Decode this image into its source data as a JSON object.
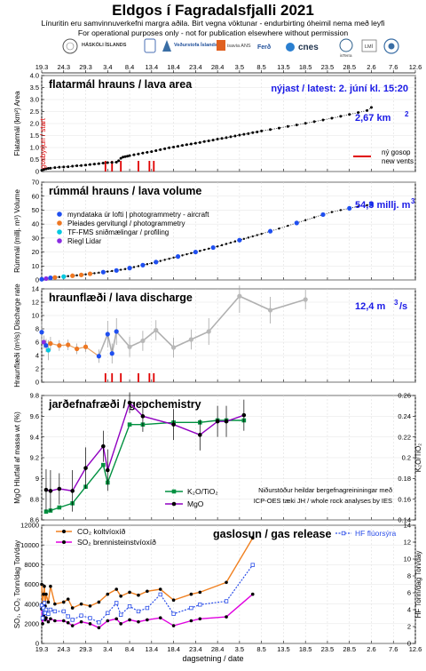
{
  "header": {
    "title": "Eldgos í Fagradalsfjalli 2021",
    "line1": "Línuritin eru samvinnuverkefni margra aðila.  Birt vegna vöktunar - endurbirting óheimil nema með leyfi",
    "line2": "For operational purposes only - not for publication elsewhere without permission",
    "logos": [
      "HÁSKÓLI ÍSLANDS",
      "Veðurstofa Íslands",
      "isavia ANS",
      "cnes",
      "isTerra",
      "LMÍ",
      "Ferð",
      "Almannavarnir"
    ]
  },
  "dates": [
    "19.3",
    "24.3",
    "29.3",
    "3.4",
    "8.4",
    "13.4",
    "18.4",
    "23.4",
    "28.4",
    "3.5",
    "8.5",
    "13.5",
    "18.5",
    "23.5",
    "28.5",
    "2.6",
    "7.6",
    "12.6"
  ],
  "xlabel": "dagsetning / date",
  "colors": {
    "vents": "#e00000",
    "aircraft": "#1f4ff0",
    "pleiades": "#ee7722",
    "tffms": "#00c8e0",
    "riegl": "#8a2be2",
    "co2": "#f08020",
    "so2": "#e000e0",
    "hf": "#2b4ee8",
    "k2o": "#009040",
    "mgo": "#9000c0",
    "annotation": "#1a1ae6"
  },
  "chart_data": [
    {
      "type": "scatter",
      "title": "flatarmál hrauns / lava area",
      "ylabel": "Flatarmál (km²) Area",
      "ylim": [
        0,
        4
      ],
      "yticks": [
        "0",
        "0.5",
        "1.0",
        "1.5",
        "2.0",
        "2.5",
        "3.0",
        "3.5",
        "4.0"
      ],
      "annotation_latest": "nýjast / latest: 2. júní kl. 15:20",
      "annotation_value": "2,67 km",
      "annotation_unit_sup": "2",
      "vertical_note": "gosbyrjun / start",
      "legend_vents": [
        "ný gosop",
        "new vents"
      ],
      "x": [
        0,
        0.5,
        1,
        1.5,
        2,
        3,
        4,
        5,
        6,
        7,
        8,
        9,
        10,
        11,
        12,
        13,
        14,
        15,
        16,
        17,
        17.5,
        18,
        18.5,
        19,
        19.5,
        20,
        21,
        22,
        23,
        24,
        25,
        26,
        27,
        28,
        29,
        30,
        31,
        32,
        33,
        34,
        35,
        36,
        37,
        38,
        39,
        40,
        41,
        42,
        43,
        44,
        45,
        46,
        47,
        48,
        49,
        50,
        52,
        54,
        56,
        58,
        60,
        62,
        64,
        66,
        68,
        70,
        72,
        74,
        75
      ],
      "values": [
        0.05,
        0.09,
        0.11,
        0.13,
        0.14,
        0.16,
        0.18,
        0.19,
        0.2,
        0.22,
        0.24,
        0.25,
        0.27,
        0.29,
        0.31,
        0.33,
        0.35,
        0.37,
        0.38,
        0.39,
        0.45,
        0.55,
        0.6,
        0.62,
        0.64,
        0.66,
        0.7,
        0.73,
        0.77,
        0.8,
        0.83,
        0.87,
        0.91,
        0.95,
        0.99,
        1.02,
        1.05,
        1.09,
        1.12,
        1.15,
        1.18,
        1.21,
        1.25,
        1.28,
        1.31,
        1.35,
        1.38,
        1.41,
        1.45,
        1.48,
        1.52,
        1.55,
        1.58,
        1.62,
        1.65,
        1.69,
        1.75,
        1.81,
        1.88,
        1.94,
        2.01,
        2.08,
        2.15,
        2.22,
        2.3,
        2.38,
        2.46,
        2.54,
        2.67
      ],
      "vents_x": [
        14.5,
        16,
        18,
        22,
        24.5,
        25.5
      ]
    },
    {
      "type": "scatter",
      "title": "rúmmál hrauns / lava volume",
      "ylabel": "Rúmmál (millj. m³) Volume",
      "ylim": [
        0,
        70
      ],
      "yticks": [
        "0",
        "10",
        "20",
        "30",
        "40",
        "50",
        "60",
        "70"
      ],
      "annotation_value": "54,3 millj. m",
      "annotation_unit_sup": "3",
      "legend": [
        "myndataka úr lofti  |  photogrammetry - aircraft",
        "Pleiades gervitungl  /  photogrammetry",
        "TF-FMS sniðmælingar  /  profiling",
        "Riegl Lidar"
      ],
      "x": [
        0,
        1,
        2,
        3,
        4,
        5,
        6,
        7,
        8,
        9,
        10,
        11,
        12,
        13,
        14,
        15,
        16,
        17,
        18,
        19,
        20,
        21,
        22,
        23,
        24,
        25,
        26,
        27,
        28,
        29,
        30,
        31,
        32,
        33,
        34,
        35,
        36,
        37,
        38,
        39,
        40,
        41,
        42,
        43,
        44,
        45,
        46,
        47,
        48,
        49,
        50,
        52,
        54,
        56,
        58,
        60,
        62,
        64,
        66,
        68,
        70,
        72,
        74,
        75
      ],
      "values": [
        0.5,
        1,
        1.5,
        1.8,
        2.1,
        2.4,
        2.7,
        3,
        3.3,
        3.6,
        4,
        4.4,
        4.8,
        5.2,
        5.6,
        6,
        6.4,
        6.8,
        7.3,
        7.8,
        8.5,
        9.2,
        9.9,
        10.6,
        11.3,
        12,
        12.8,
        13.6,
        14.4,
        15.2,
        16,
        16.8,
        17.6,
        18.4,
        19.2,
        20,
        20.8,
        21.6,
        22.4,
        23.2,
        24,
        24.9,
        25.8,
        26.7,
        27.6,
        28.5,
        29.4,
        30.3,
        31.2,
        32.1,
        33,
        34.9,
        36.8,
        38.8,
        40.8,
        42.8,
        44.8,
        46.8,
        48.6,
        50,
        51.3,
        52.6,
        53.5,
        54.3
      ],
      "markers": [
        {
          "x": 0,
          "y": 0.5,
          "kind": "aircraft"
        },
        {
          "x": 1,
          "y": 1,
          "kind": "riegl"
        },
        {
          "x": 2,
          "y": 1.5,
          "kind": "aircraft"
        },
        {
          "x": 3,
          "y": 1.8,
          "kind": "pleiades"
        },
        {
          "x": 5,
          "y": 2.4,
          "kind": "tffms"
        },
        {
          "x": 7,
          "y": 3,
          "kind": "pleiades"
        },
        {
          "x": 9,
          "y": 3.6,
          "kind": "pleiades"
        },
        {
          "x": 11,
          "y": 4.4,
          "kind": "pleiades"
        },
        {
          "x": 14,
          "y": 5.6,
          "kind": "aircraft"
        },
        {
          "x": 17,
          "y": 6.8,
          "kind": "aircraft"
        },
        {
          "x": 20,
          "y": 8.5,
          "kind": "aircraft"
        },
        {
          "x": 23,
          "y": 10.6,
          "kind": "aircraft"
        },
        {
          "x": 26,
          "y": 12.8,
          "kind": "aircraft"
        },
        {
          "x": 31,
          "y": 16.8,
          "kind": "aircraft"
        },
        {
          "x": 35,
          "y": 20,
          "kind": "aircraft"
        },
        {
          "x": 39,
          "y": 23.2,
          "kind": "aircraft"
        },
        {
          "x": 45,
          "y": 28.5,
          "kind": "aircraft"
        },
        {
          "x": 52,
          "y": 34.9,
          "kind": "aircraft"
        },
        {
          "x": 58,
          "y": 40.8,
          "kind": "aircraft"
        },
        {
          "x": 64,
          "y": 46.8,
          "kind": "aircraft"
        },
        {
          "x": 70,
          "y": 51.3,
          "kind": "aircraft"
        },
        {
          "x": 75,
          "y": 54.3,
          "kind": "aircraft"
        }
      ]
    },
    {
      "type": "line",
      "title": "hraunflæði / lava discharge",
      "ylabel": "Hraunflæði (m³/s) Discharge rate",
      "ylim": [
        0,
        14
      ],
      "yticks": [
        "0",
        "2",
        "4",
        "6",
        "8",
        "10",
        "12",
        "14"
      ],
      "annotation_value": "12,4 m",
      "annotation_unit_sup": "3",
      "annotation_suffix": "/s",
      "vents_x": [
        14.5,
        16,
        18,
        22,
        24.5,
        25.5
      ],
      "points": [
        {
          "x": 0,
          "y": 7.5,
          "err": 1.5,
          "kind": "aircraft"
        },
        {
          "x": 0.5,
          "y": 6,
          "err": 1,
          "kind": "riegl"
        },
        {
          "x": 1,
          "y": 5.5,
          "err": 1,
          "kind": "aircraft"
        },
        {
          "x": 1.5,
          "y": 4.8,
          "err": 1.5,
          "kind": "tffms"
        },
        {
          "x": 2,
          "y": 5.8,
          "err": 1,
          "kind": "pleiades"
        },
        {
          "x": 4,
          "y": 5.5,
          "err": 0.8,
          "kind": "pleiades"
        },
        {
          "x": 6,
          "y": 5.6,
          "err": 0.8,
          "kind": "pleiades"
        },
        {
          "x": 8,
          "y": 5,
          "err": 0.8,
          "kind": "pleiades"
        },
        {
          "x": 10,
          "y": 5.3,
          "err": 0.8,
          "kind": "pleiades"
        },
        {
          "x": 13,
          "y": 3.9,
          "err": 1,
          "kind": "aircraft"
        },
        {
          "x": 15,
          "y": 7.2,
          "err": 2,
          "kind": "aircraft"
        },
        {
          "x": 16,
          "y": 4.3,
          "err": 1.5,
          "kind": "aircraft"
        },
        {
          "x": 17,
          "y": 7.6,
          "err": 2,
          "kind": "aircraft"
        },
        {
          "x": 20,
          "y": 5.3,
          "err": 1.5,
          "kind": "aircraft"
        },
        {
          "x": 23,
          "y": 6.2,
          "err": 1.5,
          "kind": "aircraft"
        },
        {
          "x": 26,
          "y": 7.8,
          "err": 1.5,
          "kind": "aircraft"
        },
        {
          "x": 30,
          "y": 5.2,
          "err": 1.5,
          "kind": "aircraft"
        },
        {
          "x": 34,
          "y": 6.4,
          "err": 1.5,
          "kind": "aircraft"
        },
        {
          "x": 38,
          "y": 7.6,
          "err": 2,
          "kind": "aircraft"
        },
        {
          "x": 45,
          "y": 12.9,
          "err": 2.5,
          "kind": "aircraft"
        },
        {
          "x": 52,
          "y": 10.8,
          "err": 2,
          "kind": "aircraft"
        },
        {
          "x": 60,
          "y": 12.4,
          "err": 1.5,
          "kind": "aircraft"
        }
      ]
    },
    {
      "type": "line",
      "title": "jarðefnafræði / geochemistry",
      "ylabel": "MgO Hlutfall af massa wt (%)",
      "ylabel_right": "K₂O/TiO₂",
      "ylim": [
        8.6,
        9.8
      ],
      "yticks": [
        "8.6",
        "8.8",
        "9",
        "9.2",
        "9.4",
        "9.6",
        "9.8"
      ],
      "ylim_right": [
        0.14,
        0.26
      ],
      "yticks_right": [
        "0.14",
        "0.16",
        "0.18",
        "0.2",
        "0.22",
        "0.24",
        "0.26"
      ],
      "note": [
        "Niðurstöður heildar bergefnagreininingar með",
        "ICP-OES tæki JH / whole rock analyses by IES"
      ],
      "series": [
        {
          "name": "K₂O/TiO₂",
          "axis": "right",
          "x": [
            1,
            2,
            4,
            7,
            10,
            14,
            15,
            20,
            23,
            30,
            36,
            40,
            42,
            46
          ],
          "values": [
            0.148,
            0.149,
            0.152,
            0.156,
            0.172,
            0.193,
            0.176,
            0.232,
            0.232,
            0.234,
            0.234,
            0.236,
            0.236,
            0.236
          ]
        },
        {
          "name": "MgO",
          "axis": "left",
          "x": [
            1,
            2,
            4,
            7,
            10,
            14,
            15,
            20,
            23,
            30,
            36,
            40,
            42,
            46
          ],
          "values": [
            8.89,
            8.88,
            8.9,
            8.88,
            9.1,
            9.31,
            9.08,
            9.73,
            9.6,
            9.52,
            9.42,
            9.55,
            9.55,
            9.61
          ],
          "err": [
            0.2,
            0.2,
            0.15,
            0.2,
            0.2,
            0.15,
            0.2,
            0.1,
            0.15,
            0.15,
            0.15,
            0.15,
            0.15,
            0.15
          ]
        }
      ]
    },
    {
      "type": "line",
      "title": "gaslosun / gas release",
      "ylabel": "SO₂, CO₂ Tonn/dag Ton/day",
      "ylabel_right": "HF Tonn/dag Ton/day",
      "ylim": [
        0,
        12000
      ],
      "yticks": [
        "0",
        "2000",
        "4000",
        "6000",
        "8000",
        "10000",
        "12000"
      ],
      "ylim_right": [
        0,
        14
      ],
      "yticks_right": [
        "0",
        "2",
        "4",
        "6",
        "8",
        "10",
        "12",
        "14"
      ],
      "series": [
        {
          "name": "CO₂ koltvíoxíð",
          "axis": "left",
          "x": [
            0,
            0.2,
            0.4,
            0.6,
            0.8,
            1,
            1.5,
            2,
            3,
            5,
            6,
            7,
            9,
            11,
            13,
            15,
            17,
            18,
            20,
            22,
            24,
            27,
            30,
            34,
            36,
            42,
            48
          ],
          "values": [
            6000,
            4000,
            5000,
            5800,
            3800,
            5000,
            4200,
            5800,
            4000,
            4200,
            4500,
            3600,
            4000,
            3800,
            4200,
            5000,
            5500,
            4800,
            5200,
            4900,
            5300,
            5500,
            4400,
            5000,
            5200,
            6200,
            10700
          ]
        },
        {
          "name": "SO₂ brennisteinstvíoxíð",
          "axis": "left",
          "x": [
            0,
            0.2,
            0.4,
            0.6,
            0.8,
            1,
            1.5,
            2,
            3,
            5,
            6,
            7,
            9,
            11,
            13,
            15,
            17,
            18,
            20,
            22,
            24,
            27,
            30,
            34,
            36,
            42,
            48
          ],
          "values": [
            3500,
            2000,
            2800,
            3000,
            2400,
            2600,
            2200,
            2500,
            2300,
            2300,
            2100,
            1800,
            2200,
            2000,
            1600,
            2300,
            2500,
            2000,
            2400,
            2200,
            2400,
            2600,
            1800,
            2300,
            2500,
            2700,
            5000
          ]
        },
        {
          "name": "HF flúorsýra",
          "axis": "right",
          "x": [
            0,
            0.2,
            0.4,
            0.6,
            0.8,
            1,
            1.5,
            2,
            3,
            5,
            6,
            7,
            9,
            11,
            13,
            15,
            17,
            18,
            20,
            22,
            24,
            27,
            30,
            34,
            36,
            42,
            48
          ],
          "values": [
            4.5,
            3,
            4.2,
            4.8,
            3.6,
            4,
            3.5,
            4,
            3.8,
            3.8,
            3.2,
            2.8,
            3.3,
            3,
            2.5,
            3.6,
            4.8,
            3.4,
            4.4,
            3.8,
            4.2,
            5.8,
            3.5,
            4.2,
            4.6,
            5,
            9.3
          ]
        }
      ]
    }
  ]
}
